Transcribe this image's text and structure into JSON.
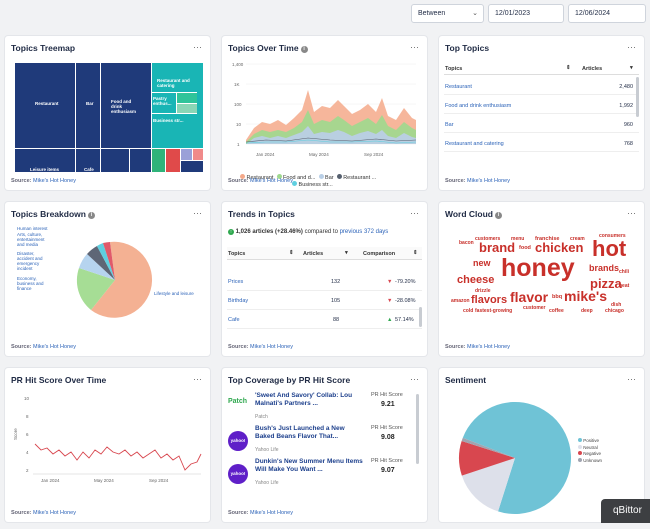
{
  "filters": {
    "mode": "Between",
    "start_date": "12/01/2023",
    "end_date": "12/06/2024"
  },
  "source_prefix": "Source:",
  "source_name": "Mike's Hot Honey",
  "cards": {
    "treemap": {
      "title": "Topics Treemap",
      "labels": [
        "Restaurant",
        "Bar",
        "Food and drink enthusiasm",
        "Restaurant and catering",
        "Pastry enthus...",
        "Business str...",
        "Leisure items",
        "Cafe"
      ]
    },
    "over_time": {
      "title": "Topics Over Time",
      "y_ticks": [
        "1,400",
        "1K",
        "100",
        "10",
        "1"
      ],
      "x_ticks": [
        "Jan 2024",
        "May 2024",
        "Sep 2024"
      ],
      "legend": [
        {
          "label": "Restaurant",
          "color": "#f4a98a"
        },
        {
          "label": "Food and d...",
          "color": "#9fd98e"
        },
        {
          "label": "Bar",
          "color": "#b9cfe6"
        },
        {
          "label": "Restaurant ...",
          "color": "#555f6e"
        },
        {
          "label": "Business str...",
          "color": "#5fcfe0"
        }
      ]
    },
    "top_topics": {
      "title": "Top Topics",
      "col_topics": "Topics",
      "col_articles": "Articles",
      "rows": [
        {
          "topic": "Restaurant",
          "articles": "2,480"
        },
        {
          "topic": "Food and drink enthusiasm",
          "articles": "1,992"
        },
        {
          "topic": "Bar",
          "articles": "960"
        },
        {
          "topic": "Restaurant and catering",
          "articles": "768"
        }
      ]
    },
    "breakdown": {
      "title": "Topics Breakdown",
      "labels": [
        "Human interest",
        "Arts, culture, entertainment and media",
        "Disaster, accident and emergency incident",
        "Economy, business and finance",
        "Lifestyle and leisure"
      ]
    },
    "trends": {
      "title": "Trends in Topics",
      "summary_count": "1,026 articles (+28.46%)",
      "summary_mid": "compared to",
      "summary_prev": "previous 372 days",
      "col_topics": "Topics",
      "col_articles": "Articles",
      "col_comparison": "Comparison",
      "rows": [
        {
          "topic": "Prices",
          "articles": "132",
          "comparison": "-79.20%",
          "dir": "down"
        },
        {
          "topic": "Birthday",
          "articles": "105",
          "comparison": "-28.08%",
          "dir": "down"
        },
        {
          "topic": "Cafe",
          "articles": "88",
          "comparison": "57.14%",
          "dir": "up"
        }
      ]
    },
    "word_cloud": {
      "title": "Word Cloud",
      "words": [
        "customers",
        "menu",
        "franchise",
        "cream",
        "consumers",
        "bacon",
        "brand",
        "food",
        "chicken",
        "hot",
        "new",
        "honey",
        "brands",
        "chili",
        "cheese",
        "pizza",
        "heat",
        "drizzle",
        "flavors",
        "flavor",
        "bbq",
        "mike's",
        "amazon",
        "dish",
        "cold",
        "fastest-growing",
        "customer",
        "coffee",
        "deep",
        "chicago"
      ]
    },
    "pr_hit": {
      "title": "PR Hit Score Over Time",
      "y_label": "Score",
      "y_ticks": [
        "10",
        "8",
        "6",
        "4",
        "2"
      ],
      "x_ticks": [
        "Jan 2024",
        "May 2024",
        "Sep 2024"
      ]
    },
    "coverage": {
      "title": "Top Coverage by PR Hit Score",
      "score_label": "PR Hit Score",
      "items": [
        {
          "logo": "Patch",
          "title": "'Sweet And Savory' Collab: Lou Malnati's Partners ...",
          "publisher": "Patch",
          "score": "9.21"
        },
        {
          "logo": "yahoo!",
          "title": "Bush's Just Launched a New Baked Beans Flavor That...",
          "publisher": "Yahoo Life",
          "score": "9.08"
        },
        {
          "logo": "yahoo!",
          "title": "Dunkin's New Summer Menu Items Will Make You Want ...",
          "publisher": "Yahoo Life",
          "score": "9.07"
        }
      ]
    },
    "sentiment": {
      "title": "Sentiment",
      "legend": [
        {
          "label": "Positive",
          "color": "#6fc3d6"
        },
        {
          "label": "Neutral",
          "color": "#dde0ea"
        },
        {
          "label": "Negative",
          "color": "#d8474f"
        },
        {
          "label": "Unknown",
          "color": "#a0a4b0"
        }
      ],
      "shares": [
        0.74,
        0.15,
        0.1,
        0.01
      ]
    }
  },
  "overlay": {
    "label": "qBittor"
  }
}
